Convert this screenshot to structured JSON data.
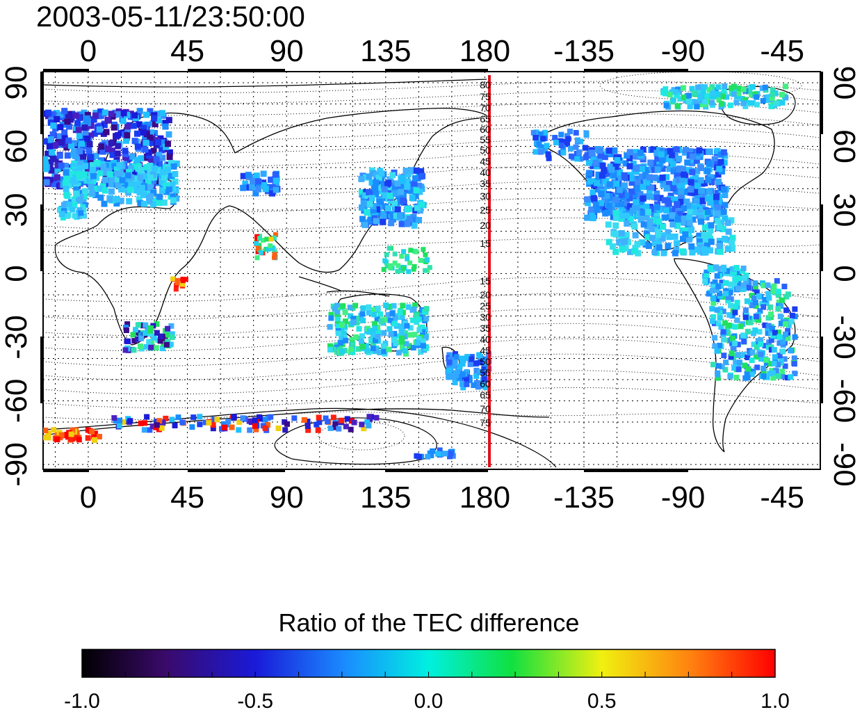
{
  "title": "2003-05-11/23:50:00",
  "top_axis_ticks": [
    "0",
    "45",
    "90",
    "135",
    "180",
    "-135",
    "-90",
    "-45"
  ],
  "bottom_axis_ticks": [
    "0",
    "45",
    "90",
    "135",
    "180",
    "-135",
    "-90",
    "-45"
  ],
  "left_axis_ticks": [
    "90",
    "60",
    "30",
    "0",
    "-30",
    "-60",
    "-90"
  ],
  "right_axis_ticks": [
    "90",
    "60",
    "30",
    "0",
    "-30",
    "-60",
    "-90"
  ],
  "magnetic_contour_labels_north": [
    "80",
    "75",
    "70",
    "65",
    "60",
    "55",
    "50",
    "45",
    "40",
    "35",
    "30",
    "25",
    "20",
    "15"
  ],
  "magnetic_contour_labels_south": [
    "15",
    "20",
    "25",
    "30",
    "35",
    "40",
    "45",
    "50",
    "55",
    "60",
    "65",
    "70",
    "75"
  ],
  "colorbar": {
    "title": "Ratio of the TEC difference",
    "ticks": [
      "-1.0",
      "-0.5",
      "0.0",
      "0.5",
      "1.0"
    ],
    "range": [
      -1.0,
      1.0
    ]
  },
  "colors": {
    "meridian_line": "#e0101a",
    "coastline": "#000000",
    "grid": "#000000"
  }
}
